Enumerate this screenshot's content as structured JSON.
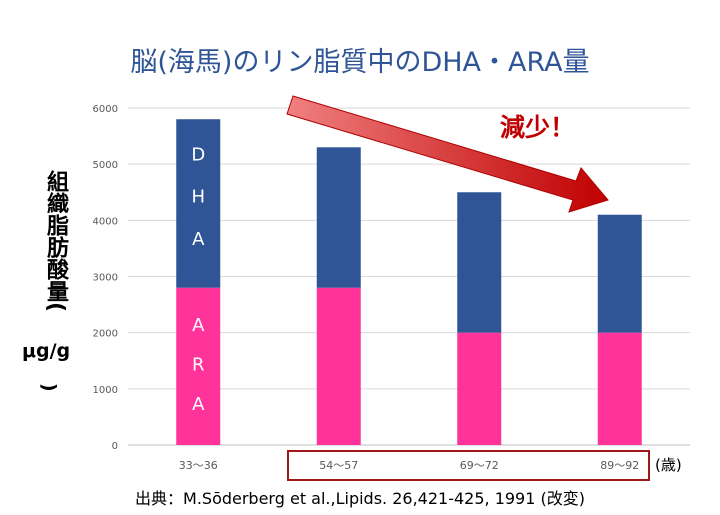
{
  "title": "脳(海馬)のリン脂質中のDHA・ARA量",
  "annotation": "減少！",
  "source": "出典：M.Sōderberg et al.,Lipids. 26,421-425, 1991 (改変)",
  "ylabel": {
    "main": "組織脂肪酸量(",
    "unit": "μg/g",
    "close": ")"
  },
  "x_unit": "(歳)",
  "colors": {
    "ara": "#ff3399",
    "dha": "#2f5597",
    "title": "#2f5597",
    "annotation": "#c00000",
    "arrow": "#c00000"
  },
  "chart_data": {
    "type": "bar",
    "stacked": true,
    "categories": [
      "33～36",
      "54～57",
      "69～72",
      "89～92"
    ],
    "series": [
      {
        "name": "ARA",
        "values": [
          2800,
          2800,
          2000,
          2000
        ]
      },
      {
        "name": "DHA",
        "values": [
          3000,
          2500,
          2500,
          2100
        ]
      }
    ],
    "segment_labels": {
      "DHA": [
        "D",
        "H",
        "A"
      ],
      "ARA": [
        "A",
        "R",
        "A"
      ]
    },
    "yticks": [
      0,
      1000,
      2000,
      3000,
      4000,
      5000,
      6000
    ],
    "ylim": [
      0,
      6000
    ],
    "grid": true
  }
}
